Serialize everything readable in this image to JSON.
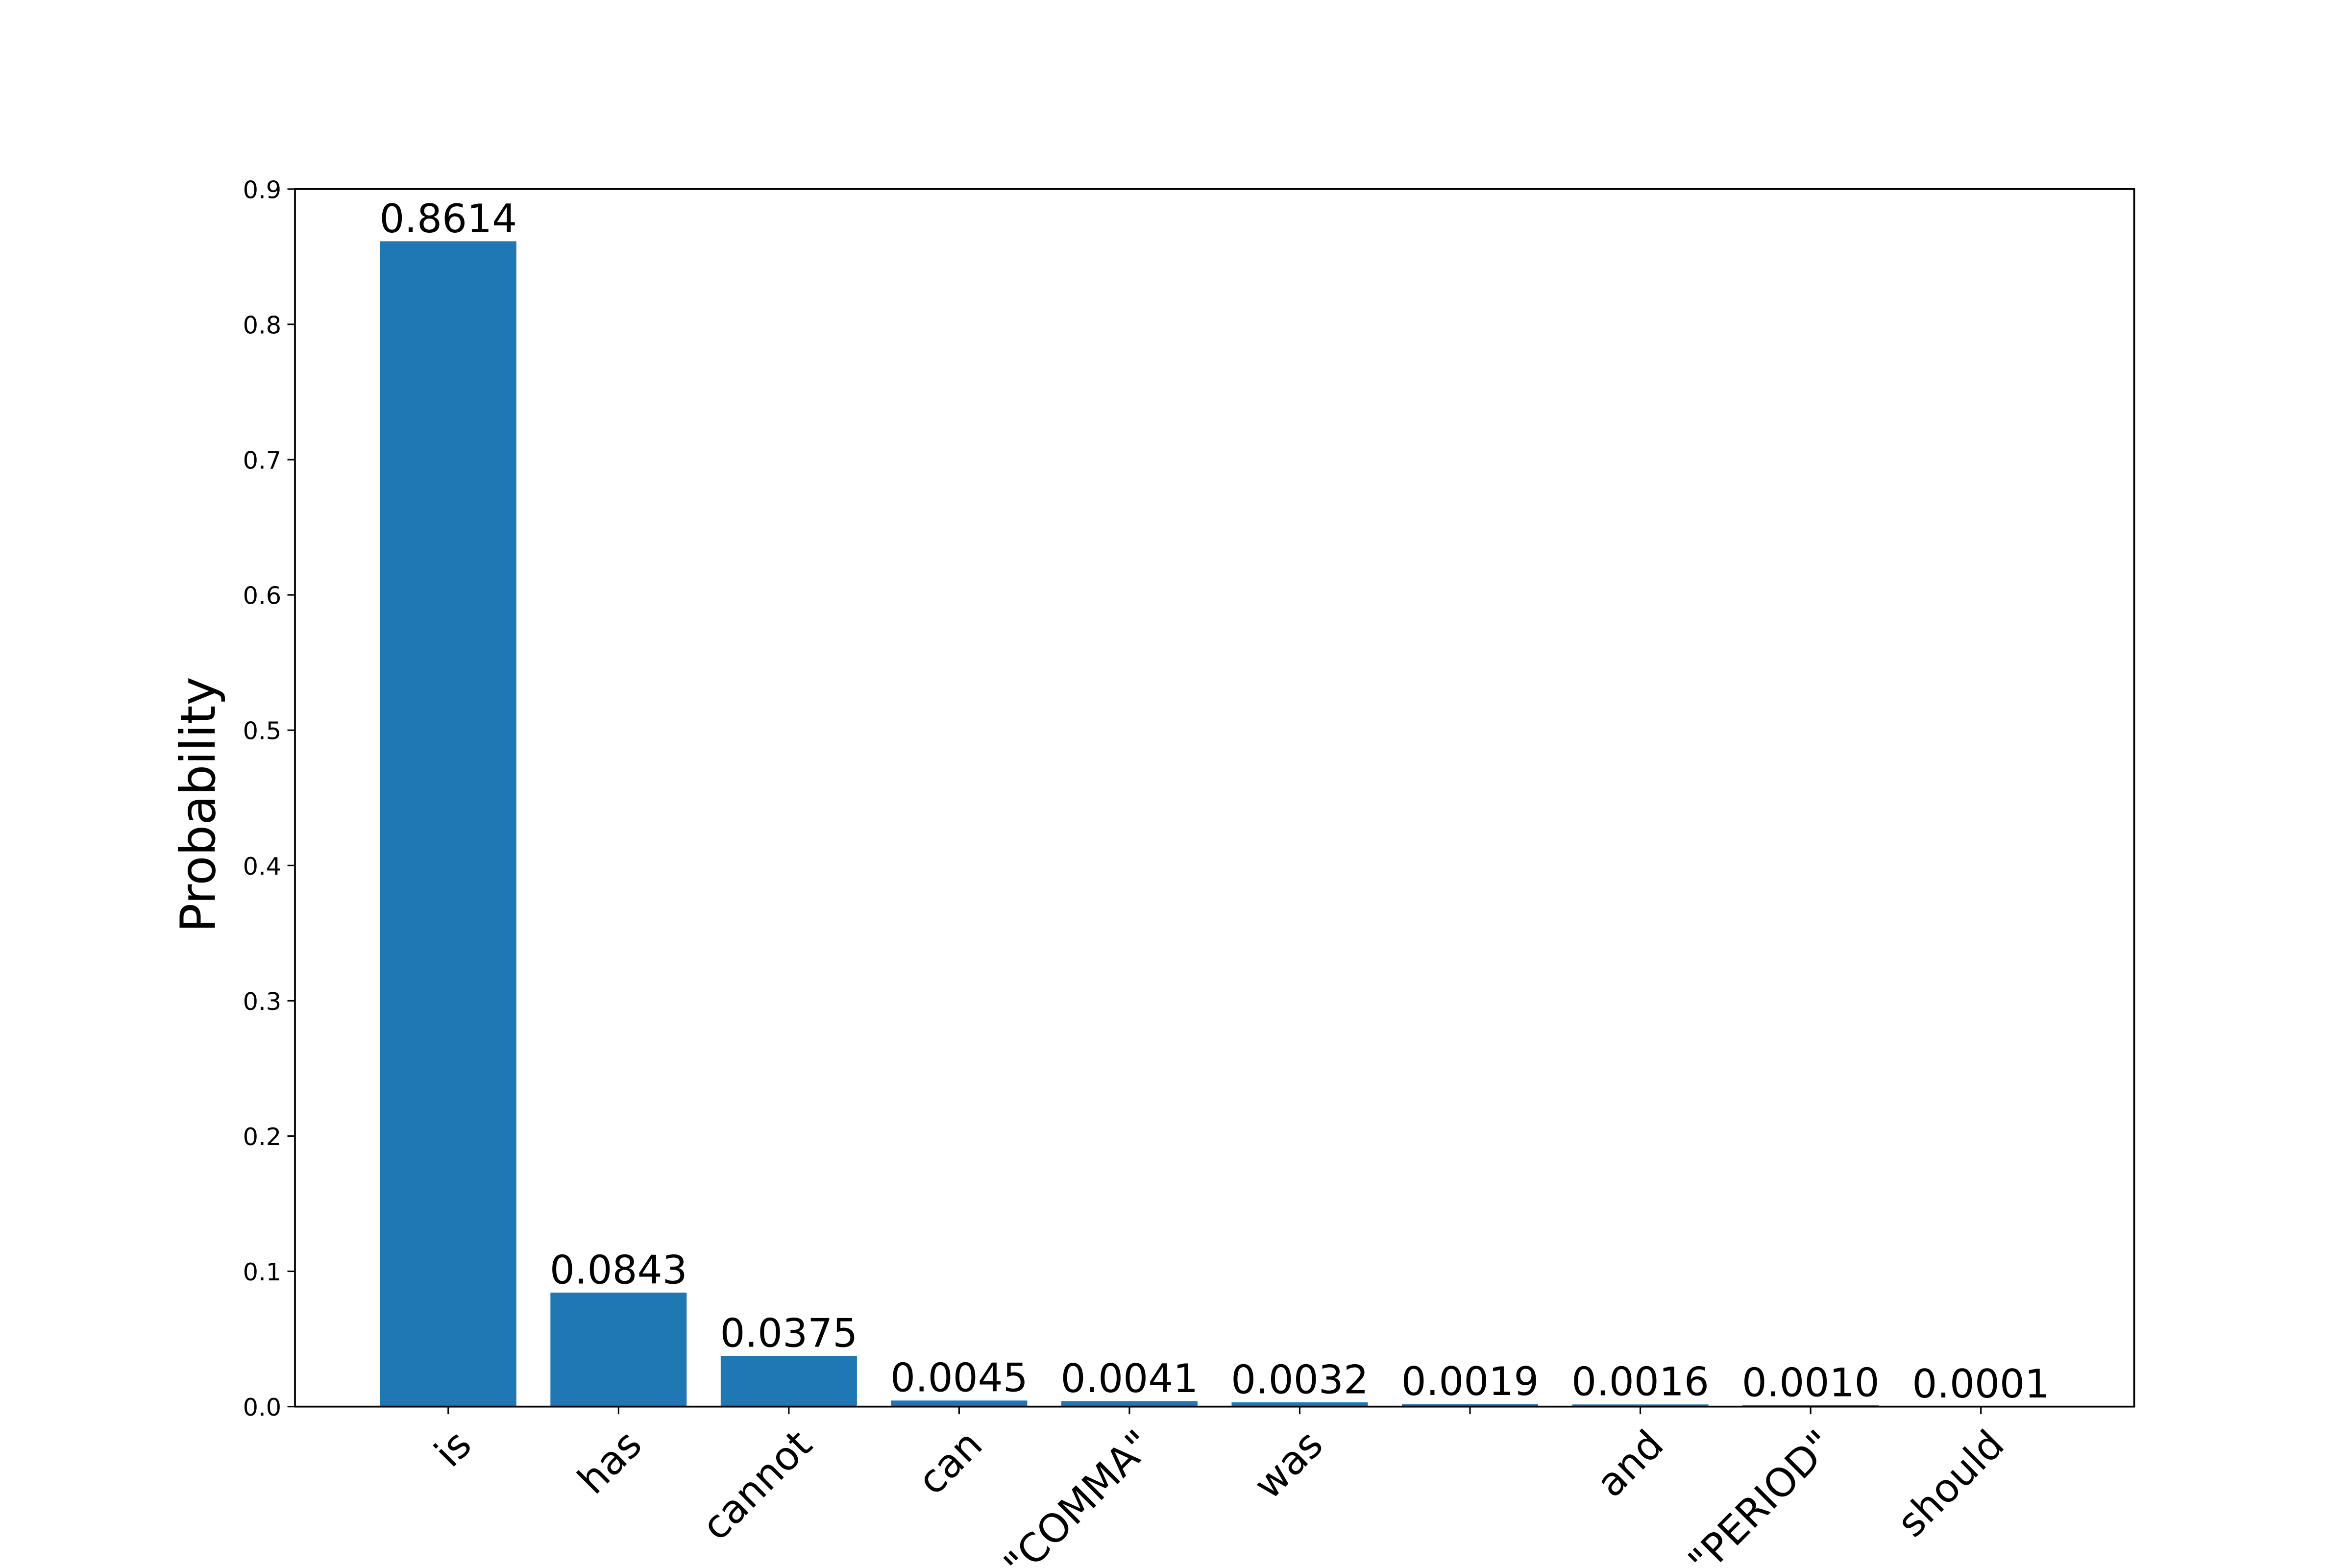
{
  "chart_data": {
    "type": "bar",
    "y_label": "Probability",
    "categories": [
      "is",
      "has",
      "cannot",
      "can",
      "\"COMMA\"",
      "was",
      null,
      "and",
      "\"PERIOD\"",
      "should"
    ],
    "values": [
      0.8614,
      0.0843,
      0.0375,
      0.0045,
      0.0041,
      0.0032,
      0.0019,
      0.0016,
      0.001,
      0.0001
    ],
    "value_labels": [
      "0.8614",
      "0.0843",
      "0.0375",
      "0.0045",
      "0.0041",
      "0.0032",
      "0.0019",
      "0.0016",
      "0.0010",
      "0.0001"
    ],
    "color": "#1f77b4",
    "ylim": [
      0,
      0.9
    ],
    "yticks": [
      {
        "value": 0,
        "label": "0.0"
      },
      0.1,
      0.2,
      0.3,
      0.4,
      0.5,
      0.6,
      0.7,
      0.8,
      0.9
    ]
  }
}
